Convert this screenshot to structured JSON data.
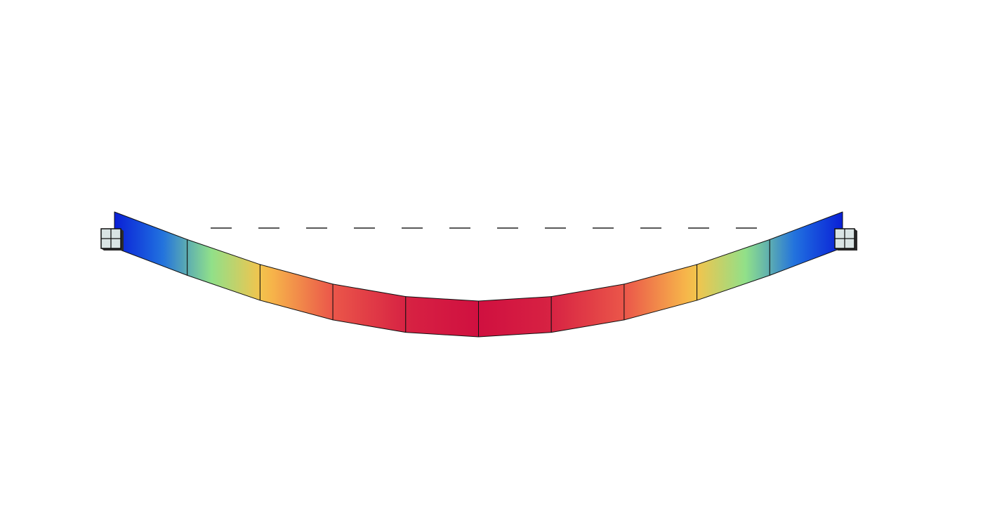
{
  "scene": {
    "description_visible_text": "",
    "background_color": "#ffffff",
    "element_count": 10,
    "colormap_stops": [
      "#0a1fd6",
      "#1f6fe0",
      "#8fe08a",
      "#f7c24a",
      "#ec5a4a",
      "#d01040"
    ],
    "normalized_deflection": [
      0.0,
      0.31,
      0.59,
      0.81,
      0.95,
      1.0,
      0.95,
      0.81,
      0.59,
      0.31,
      0.0
    ],
    "undeformed_reference_line": "dashed",
    "supports": [
      "left-fixed-support",
      "right-fixed-support"
    ],
    "support_color": "#d9e4e4",
    "edge_color": "#111111"
  }
}
